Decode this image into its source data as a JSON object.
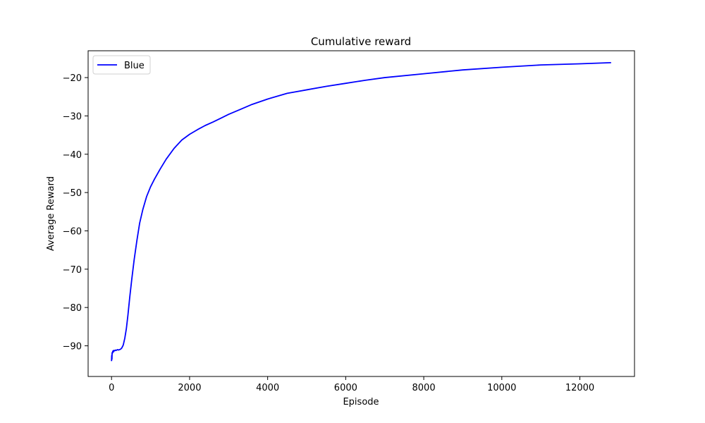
{
  "chart_data": {
    "type": "line",
    "title": "Cumulative reward",
    "xlabel": "Episode",
    "ylabel": "Average Reward",
    "xlim": [
      -600,
      13400
    ],
    "ylim": [
      -98,
      -13
    ],
    "xticks": [
      0,
      2000,
      4000,
      6000,
      8000,
      10000,
      12000
    ],
    "yticks": [
      -90,
      -80,
      -70,
      -60,
      -50,
      -40,
      -30,
      -20
    ],
    "grid": false,
    "legend_position": "top-left",
    "series": [
      {
        "name": "Blue",
        "color": "#0000ff",
        "x": [
          0,
          5,
          10,
          15,
          20,
          30,
          40,
          50,
          60,
          80,
          100,
          120,
          150,
          180,
          200,
          230,
          260,
          300,
          340,
          380,
          420,
          470,
          520,
          580,
          650,
          720,
          800,
          900,
          1000,
          1100,
          1250,
          1400,
          1600,
          1800,
          2000,
          2200,
          2400,
          2600,
          2800,
          3000,
          3300,
          3600,
          4000,
          4500,
          5000,
          5500,
          6000,
          6500,
          7000,
          8000,
          9000,
          10000,
          11000,
          12000,
          12800
        ],
        "y": [
          -94,
          -92.5,
          -93.5,
          -91.8,
          -92,
          -91.5,
          -91.3,
          -91.6,
          -91.2,
          -91.3,
          -91.1,
          -91.2,
          -91.0,
          -91.1,
          -91.0,
          -90.9,
          -90.6,
          -89.8,
          -88.0,
          -85.5,
          -82.0,
          -77.0,
          -72.5,
          -67.5,
          -62.5,
          -58.0,
          -54.5,
          -51.0,
          -48.5,
          -46.5,
          -43.8,
          -41.3,
          -38.5,
          -36.3,
          -34.8,
          -33.6,
          -32.5,
          -31.6,
          -30.6,
          -29.6,
          -28.3,
          -27.0,
          -25.6,
          -24.1,
          -23.2,
          -22.3,
          -21.5,
          -20.7,
          -20.0,
          -19.0,
          -18.0,
          -17.3,
          -16.7,
          -16.4,
          -16.1
        ]
      }
    ]
  }
}
